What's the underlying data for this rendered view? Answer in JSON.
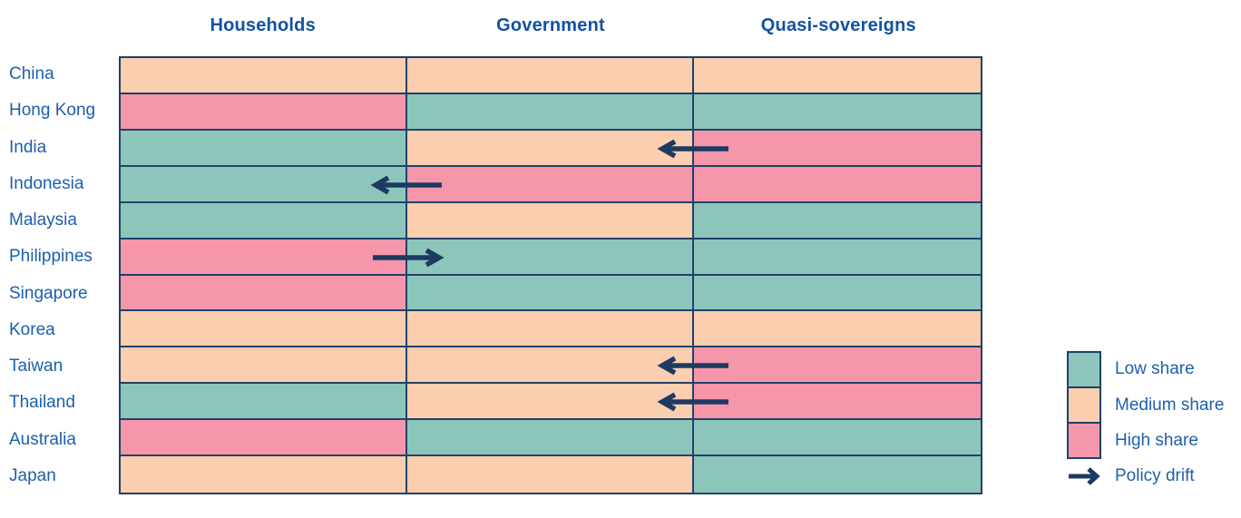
{
  "chart_data": {
    "type": "heatmap",
    "columns": [
      "Households",
      "Government",
      "Quasi-sovereigns"
    ],
    "rows": [
      "China",
      "Hong Kong",
      "India",
      "Indonesia",
      "Malaysia",
      "Philippines",
      "Singapore",
      "Korea",
      "Taiwan",
      "Thailand",
      "Australia",
      "Japan"
    ],
    "levels": {
      "low": "Low share",
      "medium": "Medium share",
      "high": "High share"
    },
    "values": [
      [
        "medium",
        "medium",
        "medium"
      ],
      [
        "high",
        "low",
        "low"
      ],
      [
        "low",
        "medium",
        "high"
      ],
      [
        "low",
        "high",
        "high"
      ],
      [
        "low",
        "medium",
        "low"
      ],
      [
        "high",
        "low",
        "low"
      ],
      [
        "high",
        "low",
        "low"
      ],
      [
        "medium",
        "medium",
        "medium"
      ],
      [
        "medium",
        "medium",
        "high"
      ],
      [
        "low",
        "medium",
        "high"
      ],
      [
        "high",
        "low",
        "low"
      ],
      [
        "medium",
        "medium",
        "low"
      ]
    ],
    "policy_drift_arrows": [
      {
        "row": "India",
        "direction": "left",
        "between_columns": [
          "Government",
          "Quasi-sovereigns"
        ]
      },
      {
        "row": "Indonesia",
        "direction": "left",
        "between_columns": [
          "Households",
          "Government"
        ]
      },
      {
        "row": "Philippines",
        "direction": "right",
        "between_columns": [
          "Households",
          "Government"
        ]
      },
      {
        "row": "Taiwan",
        "direction": "left",
        "between_columns": [
          "Government",
          "Quasi-sovereigns"
        ]
      },
      {
        "row": "Thailand",
        "direction": "left",
        "between_columns": [
          "Government",
          "Quasi-sovereigns"
        ]
      }
    ],
    "legend_position": "right"
  },
  "legend": {
    "items": [
      {
        "label": "Low share",
        "level": "low"
      },
      {
        "label": "Medium share",
        "level": "medium"
      },
      {
        "label": "High share",
        "level": "high"
      }
    ],
    "arrow_label": "Policy drift"
  },
  "colors": {
    "low": "#8CC6BB",
    "medium": "#FBCEAF",
    "high": "#F596AB",
    "grid_border": "#20416A",
    "arrow": "#1D3A62",
    "row_label": "#1D5FAE",
    "header": "#1152A3"
  }
}
